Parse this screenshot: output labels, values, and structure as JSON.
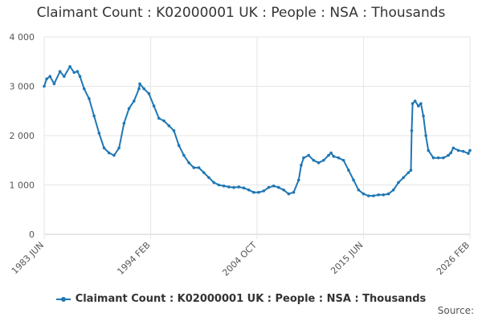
{
  "chart_data": {
    "type": "line",
    "title": "Claimant Count : K02000001 UK : People : NSA : Thousands",
    "xlabel": "",
    "ylabel": "",
    "ylim": [
      0,
      4000
    ],
    "xlim": [
      "1983-06",
      "2026-02"
    ],
    "yticks": [
      0,
      1000,
      2000,
      3000,
      4000
    ],
    "ytick_labels": [
      "0",
      "1 000",
      "2 000",
      "3 000",
      "4 000"
    ],
    "xtick_labels": [
      "1983 JUN",
      "1994 FEB",
      "2004 OCT",
      "2015 JUN",
      "2026 FEB"
    ],
    "xtick_dates": [
      "1983-06",
      "1994-02",
      "2004-10",
      "2015-06",
      "2026-02"
    ],
    "grid": true,
    "legend": "bottom",
    "series": [
      {
        "name": "Claimant Count : K02000001 UK : People : NSA : Thousands",
        "color": "#1f77b4",
        "points": [
          [
            "1983-06",
            3000
          ],
          [
            "1983-09",
            3150
          ],
          [
            "1984-01",
            3200
          ],
          [
            "1984-06",
            3050
          ],
          [
            "1985-01",
            3300
          ],
          [
            "1985-06",
            3200
          ],
          [
            "1986-01",
            3400
          ],
          [
            "1986-06",
            3280
          ],
          [
            "1986-10",
            3300
          ],
          [
            "1987-01",
            3200
          ],
          [
            "1987-06",
            2950
          ],
          [
            "1987-12",
            2750
          ],
          [
            "1988-06",
            2400
          ],
          [
            "1988-12",
            2050
          ],
          [
            "1989-06",
            1750
          ],
          [
            "1989-12",
            1650
          ],
          [
            "1990-06",
            1600
          ],
          [
            "1990-12",
            1750
          ],
          [
            "1991-06",
            2250
          ],
          [
            "1991-12",
            2550
          ],
          [
            "1992-06",
            2700
          ],
          [
            "1992-12",
            2950
          ],
          [
            "1993-01",
            3050
          ],
          [
            "1993-06",
            2950
          ],
          [
            "1993-12",
            2850
          ],
          [
            "1994-06",
            2600
          ],
          [
            "1994-12",
            2350
          ],
          [
            "1995-06",
            2300
          ],
          [
            "1995-12",
            2200
          ],
          [
            "1996-06",
            2100
          ],
          [
            "1996-12",
            1800
          ],
          [
            "1997-06",
            1600
          ],
          [
            "1997-12",
            1450
          ],
          [
            "1998-06",
            1350
          ],
          [
            "1998-12",
            1350
          ],
          [
            "1999-06",
            1250
          ],
          [
            "1999-12",
            1150
          ],
          [
            "2000-06",
            1050
          ],
          [
            "2000-12",
            1000
          ],
          [
            "2001-06",
            980
          ],
          [
            "2001-12",
            960
          ],
          [
            "2002-06",
            950
          ],
          [
            "2002-12",
            960
          ],
          [
            "2003-06",
            940
          ],
          [
            "2003-12",
            900
          ],
          [
            "2004-06",
            850
          ],
          [
            "2004-12",
            850
          ],
          [
            "2005-06",
            880
          ],
          [
            "2005-12",
            950
          ],
          [
            "2006-06",
            980
          ],
          [
            "2006-12",
            950
          ],
          [
            "2007-06",
            900
          ],
          [
            "2007-12",
            820
          ],
          [
            "2008-06",
            850
          ],
          [
            "2008-12",
            1100
          ],
          [
            "2009-03",
            1400
          ],
          [
            "2009-06",
            1550
          ],
          [
            "2009-12",
            1600
          ],
          [
            "2010-06",
            1500
          ],
          [
            "2010-12",
            1450
          ],
          [
            "2011-06",
            1500
          ],
          [
            "2011-12",
            1600
          ],
          [
            "2012-03",
            1650
          ],
          [
            "2012-06",
            1580
          ],
          [
            "2012-12",
            1550
          ],
          [
            "2013-06",
            1500
          ],
          [
            "2013-12",
            1300
          ],
          [
            "2014-06",
            1100
          ],
          [
            "2014-12",
            900
          ],
          [
            "2015-06",
            820
          ],
          [
            "2015-12",
            780
          ],
          [
            "2016-06",
            780
          ],
          [
            "2016-12",
            800
          ],
          [
            "2017-06",
            800
          ],
          [
            "2017-12",
            820
          ],
          [
            "2018-06",
            900
          ],
          [
            "2018-12",
            1050
          ],
          [
            "2019-06",
            1150
          ],
          [
            "2019-12",
            1250
          ],
          [
            "2020-03",
            1300
          ],
          [
            "2020-04",
            2100
          ],
          [
            "2020-05",
            2650
          ],
          [
            "2020-08",
            2700
          ],
          [
            "2020-12",
            2600
          ],
          [
            "2021-03",
            2650
          ],
          [
            "2021-06",
            2400
          ],
          [
            "2021-09",
            2000
          ],
          [
            "2021-12",
            1700
          ],
          [
            "2022-06",
            1550
          ],
          [
            "2022-12",
            1550
          ],
          [
            "2023-06",
            1550
          ],
          [
            "2023-12",
            1600
          ],
          [
            "2024-03",
            1650
          ],
          [
            "2024-06",
            1750
          ],
          [
            "2024-12",
            1700
          ],
          [
            "2025-06",
            1680
          ],
          [
            "2025-12",
            1640
          ],
          [
            "2026-02",
            1700
          ]
        ]
      }
    ]
  },
  "credits": "Source:"
}
